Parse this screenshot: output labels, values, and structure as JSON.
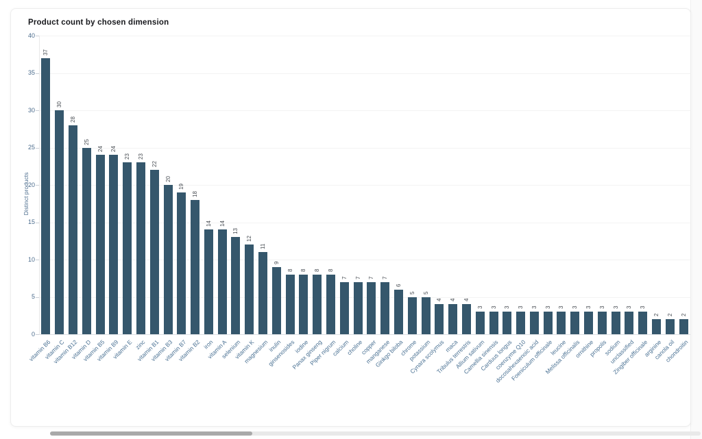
{
  "chart_data": {
    "type": "bar",
    "title": "Product count by chosen dimension",
    "xlabel": "",
    "ylabel": "Distinct products",
    "ylim": [
      0,
      40
    ],
    "yticks": [
      0,
      5,
      10,
      15,
      20,
      25,
      30,
      35,
      40
    ],
    "grid": true,
    "legend_position": "none",
    "categories": [
      "vitamin B6",
      "vitamin C",
      "vitamin B12",
      "vitamin D",
      "vitamin B5",
      "vitamin B9",
      "vitamin E",
      "zinc",
      "vitamin B1",
      "vitamin B3",
      "vitamin B7",
      "vitamin B2",
      "iron",
      "vitamin A",
      "selenium",
      "vitamin K",
      "magnesium",
      "inulin",
      "ginsenosides",
      "iodine",
      "Panax ginseng",
      "Piper nigrum",
      "calcium",
      "choline",
      "copper",
      "manganese",
      "Ginkgo biloba",
      "chrome",
      "potassium",
      "Cynara scolymus",
      "maca",
      "Tribulus terrestris",
      "Allium sativum",
      "Camellia sinensis",
      "Carduus longus",
      "coenzyme Q10",
      "docosahexaenoic acid",
      "Foeniculum officinale",
      "leucine",
      "Melissa officinalis",
      "ornithine",
      "propolis",
      "sodium",
      "unclassified",
      "Zingiber officinale",
      "arginine",
      "canola oil",
      "chondroitin"
    ],
    "values": [
      37,
      30,
      28,
      25,
      24,
      24,
      23,
      23,
      22,
      20,
      19,
      18,
      14,
      14,
      13,
      12,
      11,
      9,
      8,
      8,
      8,
      8,
      7,
      7,
      7,
      7,
      6,
      5,
      5,
      4,
      4,
      4,
      3,
      3,
      3,
      3,
      3,
      3,
      3,
      3,
      3,
      3,
      3,
      3,
      3,
      2,
      2,
      2
    ]
  },
  "colors": {
    "bar": "#35576C",
    "title": "#17181c",
    "y_tick_label": "#4a6b8c",
    "x_tick_label": "#4a7193",
    "value_label": "#474c52",
    "axis_title": "#4a6b8c",
    "scroll_thumb": "#a9a9a9",
    "scroll_track": "#e9e9e9"
  }
}
